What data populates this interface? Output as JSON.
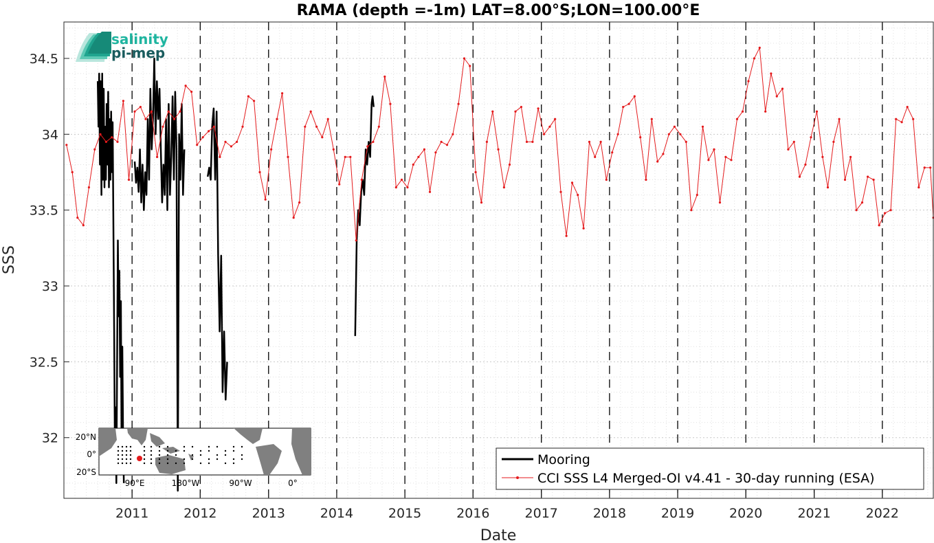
{
  "chart_data": {
    "type": "line",
    "title": "RAMA (depth =-1m) LAT=8.00°S;LON=100.00°E",
    "xlabel": "Date",
    "ylabel": "SSS",
    "xlim": [
      "2010-01-01",
      "2022-10-01"
    ],
    "ylim": [
      31.6,
      34.74
    ],
    "x_ticks": [
      "2011",
      "2012",
      "2013",
      "2014",
      "2015",
      "2016",
      "2017",
      "2018",
      "2019",
      "2020",
      "2021",
      "2022"
    ],
    "y_ticks": [
      32,
      32.5,
      33,
      33.5,
      34,
      34.5
    ],
    "grid": "dotted minor and major",
    "year_markers": "dashed vertical lines at each January 1",
    "legend_position": "bottom-right",
    "series": [
      {
        "name": "Mooring",
        "color": "#000000",
        "style": "thick line",
        "segments": [
          [
            [
              "2010-07-01",
              34.35
            ],
            [
              "2010-07-05",
              34.05
            ],
            [
              "2010-07-09",
              34.4
            ],
            [
              "2010-07-13",
              33.8
            ],
            [
              "2010-07-17",
              34.35
            ],
            [
              "2010-07-21",
              33.6
            ],
            [
              "2010-07-25",
              34.4
            ],
            [
              "2010-07-29",
              33.7
            ],
            [
              "2010-08-02",
              34.3
            ],
            [
              "2010-08-06",
              33.65
            ],
            [
              "2010-08-10",
              34.05
            ],
            [
              "2010-08-14",
              33.7
            ],
            [
              "2010-08-18",
              34.2
            ],
            [
              "2010-08-22",
              33.8
            ],
            [
              "2010-08-26",
              34.28
            ],
            [
              "2010-08-30",
              33.65
            ],
            [
              "2010-09-03",
              34.1
            ],
            [
              "2010-09-07",
              33.7
            ],
            [
              "2010-09-11",
              34.15
            ],
            [
              "2010-09-15",
              33.75
            ],
            [
              "2010-09-19",
              34.08
            ],
            [
              "2010-09-23",
              33.4
            ],
            [
              "2010-09-27",
              32.7
            ],
            [
              "2010-10-01",
              31.9
            ],
            [
              "2010-10-05",
              32.2
            ],
            [
              "2010-10-09",
              31.7
            ],
            [
              "2010-10-13",
              32.5
            ],
            [
              "2010-10-17",
              33.3
            ],
            [
              "2010-10-21",
              32.8
            ],
            [
              "2010-10-25",
              33.1
            ],
            [
              "2010-10-29",
              32.4
            ],
            [
              "2010-11-02",
              32.9
            ],
            [
              "2010-11-06",
              31.8
            ],
            [
              "2010-11-10",
              32.6
            ],
            [
              "2010-11-14",
              32.0
            ],
            [
              "2010-11-18",
              31.7
            ]
          ],
          [
            [
              "2011-01-15",
              33.82
            ],
            [
              "2011-01-22",
              33.68
            ],
            [
              "2011-01-29",
              33.78
            ],
            [
              "2011-02-05",
              33.62
            ],
            [
              "2011-02-12",
              33.9
            ],
            [
              "2011-02-19",
              33.55
            ],
            [
              "2011-02-26",
              33.8
            ],
            [
              "2011-03-05",
              33.5
            ],
            [
              "2011-03-12",
              33.75
            ],
            [
              "2011-03-19",
              33.6
            ],
            [
              "2011-03-26",
              34.1
            ],
            [
              "2011-04-02",
              33.7
            ],
            [
              "2011-04-09",
              34.3
            ],
            [
              "2011-04-16",
              33.9
            ],
            [
              "2011-04-23",
              34.1
            ],
            [
              "2011-04-30",
              34.5
            ],
            [
              "2011-05-07",
              34.0
            ],
            [
              "2011-05-14",
              34.35
            ],
            [
              "2011-05-21",
              34.1
            ],
            [
              "2011-05-28",
              34.3
            ],
            [
              "2011-06-04",
              33.9
            ],
            [
              "2011-06-11",
              33.55
            ],
            [
              "2011-06-18",
              33.8
            ],
            [
              "2011-06-25",
              33.6
            ],
            [
              "2011-07-02",
              34.1
            ],
            [
              "2011-07-09",
              33.5
            ],
            [
              "2011-07-16",
              34.2
            ],
            [
              "2011-07-23",
              33.6
            ],
            [
              "2011-07-30",
              33.85
            ],
            [
              "2011-08-06",
              34.25
            ],
            [
              "2011-08-13",
              33.7
            ],
            [
              "2011-08-20",
              34.28
            ],
            [
              "2011-08-27",
              33.9
            ],
            [
              "2011-09-03",
              31.65
            ],
            [
              "2011-09-10",
              34.0
            ],
            [
              "2011-09-17",
              33.7
            ],
            [
              "2011-09-24",
              34.2
            ],
            [
              "2011-10-01",
              33.6
            ],
            [
              "2011-10-08",
              33.9
            ]
          ],
          [
            [
              "2012-02-10",
              33.72
            ],
            [
              "2012-02-18",
              33.78
            ],
            [
              "2012-02-26",
              33.7
            ],
            [
              "2012-03-05",
              34.05
            ],
            [
              "2012-03-13",
              34.17
            ],
            [
              "2012-03-21",
              33.7
            ],
            [
              "2012-03-29",
              34.15
            ],
            [
              "2012-04-06",
              33.2
            ],
            [
              "2012-04-14",
              32.7
            ],
            [
              "2012-04-22",
              33.2
            ],
            [
              "2012-04-30",
              32.3
            ],
            [
              "2012-05-08",
              32.7
            ],
            [
              "2012-05-16",
              32.25
            ],
            [
              "2012-05-24",
              32.5
            ]
          ],
          [
            [
              "2014-04-10",
              32.67
            ],
            [
              "2014-04-18",
              33.3
            ],
            [
              "2014-04-26",
              33.5
            ],
            [
              "2014-05-04",
              33.4
            ],
            [
              "2014-05-12",
              33.62
            ],
            [
              "2014-05-20",
              33.7
            ],
            [
              "2014-05-28",
              33.6
            ],
            [
              "2014-06-05",
              33.9
            ],
            [
              "2014-06-13",
              33.8
            ],
            [
              "2014-06-21",
              33.95
            ],
            [
              "2014-06-29",
              33.85
            ],
            [
              "2014-07-07",
              34.2
            ],
            [
              "2014-07-12",
              34.25
            ],
            [
              "2014-07-18",
              34.18
            ]
          ]
        ]
      },
      {
        "name": "CCI SSS L4 Merged-OI v4.41 - 30-day running (ESA)",
        "color": "#e41a1c",
        "style": "thin line with dot markers",
        "points": [
          [
            "2010-01-15",
            33.93
          ],
          [
            "2010-02-15",
            33.75
          ],
          [
            "2010-03-15",
            33.45
          ],
          [
            "2010-04-15",
            33.4
          ],
          [
            "2010-05-15",
            33.65
          ],
          [
            "2010-06-15",
            33.9
          ],
          [
            "2010-07-15",
            34.0
          ],
          [
            "2010-08-15",
            33.95
          ],
          [
            "2010-09-15",
            33.98
          ],
          [
            "2010-10-15",
            33.95
          ],
          [
            "2010-11-15",
            34.22
          ],
          [
            "2010-12-15",
            33.7
          ],
          [
            "2011-01-15",
            34.15
          ],
          [
            "2011-02-15",
            34.18
          ],
          [
            "2011-03-15",
            34.1
          ],
          [
            "2011-04-15",
            34.15
          ],
          [
            "2011-05-15",
            33.85
          ],
          [
            "2011-06-15",
            34.05
          ],
          [
            "2011-07-15",
            34.15
          ],
          [
            "2011-08-15",
            34.1
          ],
          [
            "2011-09-15",
            34.15
          ],
          [
            "2011-10-15",
            34.32
          ],
          [
            "2011-11-15",
            34.28
          ],
          [
            "2011-12-15",
            33.93
          ],
          [
            "2012-01-15",
            33.98
          ],
          [
            "2012-02-15",
            34.02
          ],
          [
            "2012-03-15",
            34.05
          ],
          [
            "2012-04-15",
            33.85
          ],
          [
            "2012-05-15",
            33.95
          ],
          [
            "2012-06-15",
            33.92
          ],
          [
            "2012-07-15",
            33.95
          ],
          [
            "2012-08-15",
            34.05
          ],
          [
            "2012-09-15",
            34.25
          ],
          [
            "2012-10-15",
            34.22
          ],
          [
            "2012-11-15",
            33.75
          ],
          [
            "2012-12-15",
            33.57
          ],
          [
            "2013-01-15",
            33.9
          ],
          [
            "2013-02-15",
            34.1
          ],
          [
            "2013-03-15",
            34.27
          ],
          [
            "2013-04-15",
            33.85
          ],
          [
            "2013-05-15",
            33.45
          ],
          [
            "2013-06-15",
            33.55
          ],
          [
            "2013-07-15",
            34.05
          ],
          [
            "2013-08-15",
            34.15
          ],
          [
            "2013-09-15",
            34.05
          ],
          [
            "2013-10-15",
            33.98
          ],
          [
            "2013-11-15",
            34.1
          ],
          [
            "2013-12-15",
            33.9
          ],
          [
            "2014-01-15",
            33.67
          ],
          [
            "2014-02-15",
            33.85
          ],
          [
            "2014-03-15",
            33.85
          ],
          [
            "2014-04-15",
            33.3
          ],
          [
            "2014-05-15",
            33.7
          ],
          [
            "2014-06-15",
            33.92
          ],
          [
            "2014-07-15",
            33.95
          ],
          [
            "2014-08-15",
            34.05
          ],
          [
            "2014-09-15",
            34.38
          ],
          [
            "2014-10-15",
            34.2
          ],
          [
            "2014-11-15",
            33.65
          ],
          [
            "2014-12-15",
            33.7
          ],
          [
            "2015-01-15",
            33.65
          ],
          [
            "2015-02-15",
            33.8
          ],
          [
            "2015-03-15",
            33.85
          ],
          [
            "2015-04-15",
            33.9
          ],
          [
            "2015-05-15",
            33.62
          ],
          [
            "2015-06-15",
            33.88
          ],
          [
            "2015-07-15",
            33.95
          ],
          [
            "2015-08-15",
            33.93
          ],
          [
            "2015-09-15",
            34.0
          ],
          [
            "2015-10-15",
            34.2
          ],
          [
            "2015-11-15",
            34.5
          ],
          [
            "2015-12-15",
            34.45
          ],
          [
            "2016-01-15",
            33.75
          ],
          [
            "2016-02-15",
            33.55
          ],
          [
            "2016-03-15",
            33.95
          ],
          [
            "2016-04-15",
            34.15
          ],
          [
            "2016-05-15",
            33.9
          ],
          [
            "2016-06-15",
            33.65
          ],
          [
            "2016-07-15",
            33.8
          ],
          [
            "2016-08-15",
            34.15
          ],
          [
            "2016-09-15",
            34.18
          ],
          [
            "2016-10-15",
            33.95
          ],
          [
            "2016-11-15",
            33.95
          ],
          [
            "2016-12-15",
            34.17
          ],
          [
            "2017-01-15",
            34.0
          ],
          [
            "2017-02-15",
            34.05
          ],
          [
            "2017-03-15",
            34.1
          ],
          [
            "2017-04-15",
            33.62
          ],
          [
            "2017-05-15",
            33.33
          ],
          [
            "2017-06-15",
            33.68
          ],
          [
            "2017-07-15",
            33.6
          ],
          [
            "2017-08-15",
            33.38
          ],
          [
            "2017-09-15",
            33.95
          ],
          [
            "2017-10-15",
            33.85
          ],
          [
            "2017-11-15",
            33.95
          ],
          [
            "2017-12-15",
            33.7
          ],
          [
            "2018-01-15",
            33.88
          ],
          [
            "2018-02-15",
            34.0
          ],
          [
            "2018-03-15",
            34.18
          ],
          [
            "2018-04-15",
            34.2
          ],
          [
            "2018-05-15",
            34.25
          ],
          [
            "2018-06-15",
            33.98
          ],
          [
            "2018-07-15",
            33.7
          ],
          [
            "2018-08-15",
            34.1
          ],
          [
            "2018-09-15",
            33.82
          ],
          [
            "2018-10-15",
            33.87
          ],
          [
            "2018-11-15",
            34.0
          ],
          [
            "2018-12-15",
            34.05
          ],
          [
            "2019-01-15",
            34.0
          ],
          [
            "2019-02-15",
            33.95
          ],
          [
            "2019-03-15",
            33.5
          ],
          [
            "2019-04-15",
            33.6
          ],
          [
            "2019-05-15",
            34.05
          ],
          [
            "2019-06-15",
            33.83
          ],
          [
            "2019-07-15",
            33.9
          ],
          [
            "2019-08-15",
            33.55
          ],
          [
            "2019-09-15",
            33.85
          ],
          [
            "2019-10-15",
            33.83
          ],
          [
            "2019-11-15",
            34.1
          ],
          [
            "2019-12-15",
            34.15
          ],
          [
            "2020-01-15",
            34.35
          ],
          [
            "2020-02-15",
            34.5
          ],
          [
            "2020-03-15",
            34.57
          ],
          [
            "2020-04-15",
            34.15
          ],
          [
            "2020-05-15",
            34.4
          ],
          [
            "2020-06-15",
            34.25
          ],
          [
            "2020-07-15",
            34.3
          ],
          [
            "2020-08-15",
            33.9
          ],
          [
            "2020-09-15",
            33.95
          ],
          [
            "2020-10-15",
            33.72
          ],
          [
            "2020-11-15",
            33.8
          ],
          [
            "2020-12-15",
            33.98
          ],
          [
            "2021-01-15",
            34.15
          ],
          [
            "2021-02-15",
            33.85
          ],
          [
            "2021-03-15",
            33.65
          ],
          [
            "2021-04-15",
            33.95
          ],
          [
            "2021-05-15",
            34.1
          ],
          [
            "2021-06-15",
            33.7
          ],
          [
            "2021-07-15",
            33.85
          ],
          [
            "2021-08-15",
            33.5
          ],
          [
            "2021-09-15",
            33.55
          ],
          [
            "2021-10-15",
            33.72
          ],
          [
            "2021-11-15",
            33.7
          ],
          [
            "2021-12-15",
            33.4
          ],
          [
            "2022-01-15",
            33.48
          ],
          [
            "2022-02-15",
            33.5
          ],
          [
            "2022-03-15",
            34.1
          ],
          [
            "2022-04-15",
            34.08
          ],
          [
            "2022-05-15",
            34.18
          ],
          [
            "2022-06-15",
            34.1
          ],
          [
            "2022-07-15",
            33.65
          ],
          [
            "2022-08-15",
            33.78
          ],
          [
            "2022-09-15",
            33.78
          ],
          [
            "2022-10-01",
            33.45
          ]
        ]
      }
    ]
  },
  "logo": {
    "line1": "salinity",
    "line2": "pi-mep",
    "color1": "#1fb5a0",
    "color2": "#1a5c5e"
  },
  "inset_map": {
    "lat_labels": [
      "20°N",
      "0°",
      "20°S"
    ],
    "lon_labels": [
      "90°E",
      "180°W",
      "90°W",
      "0°"
    ],
    "marker_color": "#e41a1c",
    "land_color": "#808080"
  },
  "colors": {
    "axis": "#262626",
    "grid": "#dcdcdc",
    "year_line": "#000000"
  }
}
